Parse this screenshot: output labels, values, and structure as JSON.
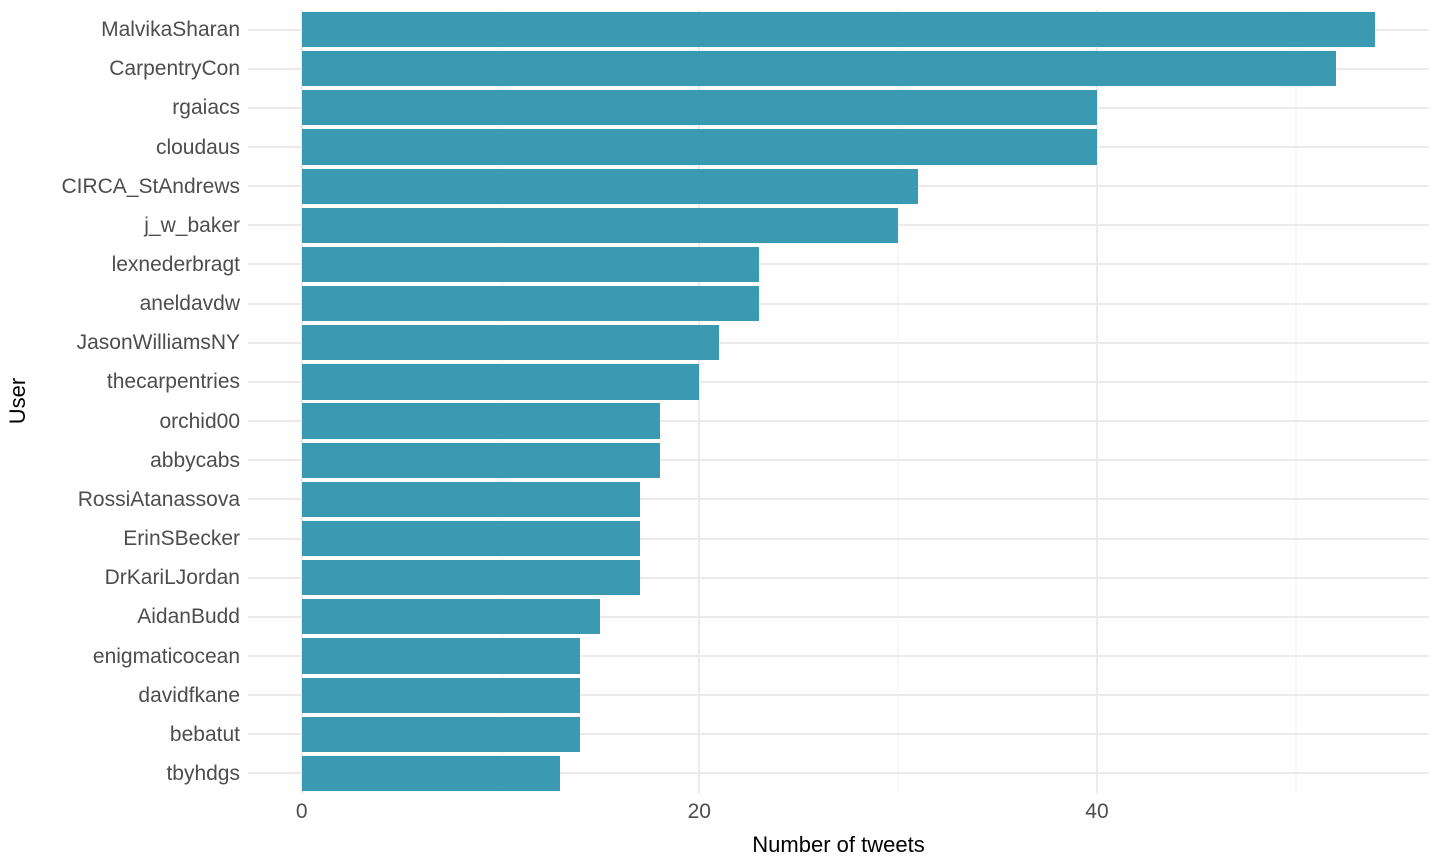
{
  "chart_data": {
    "type": "bar",
    "orientation": "horizontal",
    "xlabel": "Number of tweets",
    "ylabel": "User",
    "categories": [
      "MalvikaSharan",
      "CarpentryCon",
      "rgaiacs",
      "cloudaus",
      "CIRCA_StAndrews",
      "j_w_baker",
      "lexnederbragt",
      "aneldavdw",
      "JasonWilliamsNY",
      "thecarpentries",
      "orchid00",
      "abbycabs",
      "RossiAtanassova",
      "ErinSBecker",
      "DrKariLJordan",
      "AidanBudd",
      "enigmaticocean",
      "davidfkane",
      "bebatut",
      "tbyhdgs"
    ],
    "values": [
      54,
      52,
      40,
      40,
      31,
      30,
      23,
      23,
      21,
      20,
      18,
      18,
      17,
      17,
      17,
      15,
      14,
      14,
      14,
      13
    ],
    "x_axis": {
      "ticks": [
        0,
        20,
        40
      ],
      "minor_gridlines": [
        10,
        30,
        50
      ],
      "range_expanded": [
        -2.7,
        56.7
      ]
    },
    "bar_width_fraction": 0.9,
    "colors": {
      "bar": "#3B9AB2",
      "grid_major": "#EBEBEB",
      "grid_minor": "#EFEFEF",
      "tick_text": "#4D4D4D",
      "title_text": "#000000",
      "background": "#FFFFFF"
    },
    "legend": null,
    "grid": "on"
  }
}
